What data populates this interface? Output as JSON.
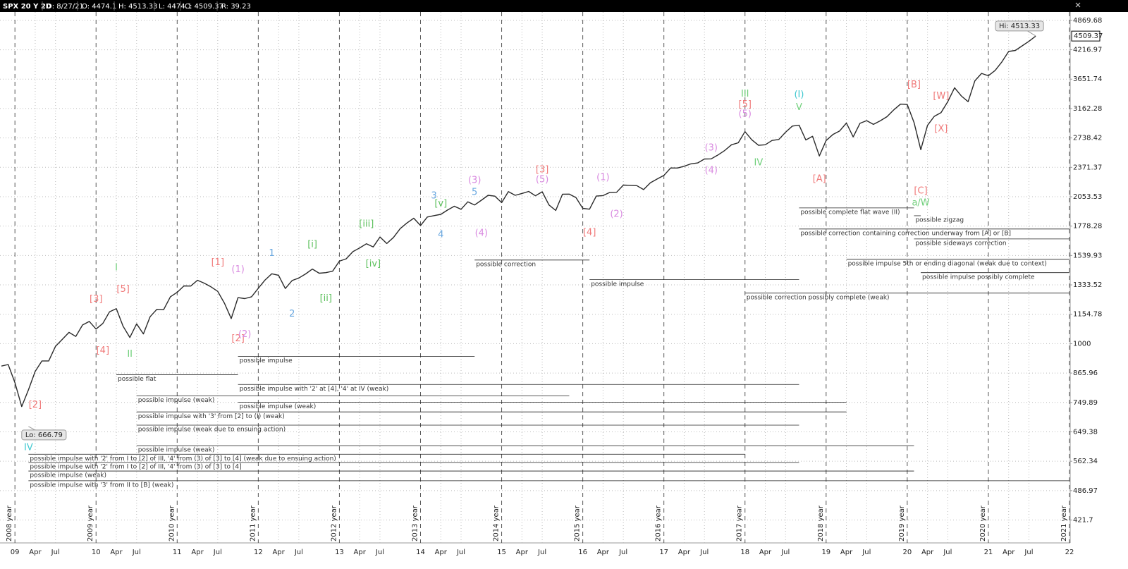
{
  "header": {
    "symbol": "SPX 20 Y 2D",
    "date": "D: 8/27/21",
    "open": "O: 4474.1",
    "high": "H: 4513.33",
    "low": "L: 4474.1",
    "close": "C: 4509.37",
    "range": "R: 39.23"
  },
  "chart_data": {
    "type": "line",
    "log_scale": true,
    "grid": true,
    "color": "#2a2a2a",
    "x": [
      "2008-11",
      "2008-12",
      "2009-01",
      "2009-02",
      "2009-03",
      "2009-04",
      "2009-05",
      "2009-06",
      "2009-07",
      "2009-08",
      "2009-09",
      "2009-10",
      "2009-11",
      "2009-12",
      "2010-01",
      "2010-02",
      "2010-03",
      "2010-04",
      "2010-05",
      "2010-06",
      "2010-07",
      "2010-08",
      "2010-09",
      "2010-10",
      "2010-11",
      "2010-12",
      "2011-01",
      "2011-02",
      "2011-03",
      "2011-04",
      "2011-05",
      "2011-06",
      "2011-07",
      "2011-08",
      "2011-09",
      "2011-10",
      "2011-11",
      "2011-12",
      "2012-01",
      "2012-02",
      "2012-03",
      "2012-04",
      "2012-05",
      "2012-06",
      "2012-07",
      "2012-08",
      "2012-09",
      "2012-10",
      "2012-11",
      "2012-12",
      "2013-01",
      "2013-02",
      "2013-03",
      "2013-04",
      "2013-05",
      "2013-06",
      "2013-07",
      "2013-08",
      "2013-09",
      "2013-10",
      "2013-11",
      "2013-12",
      "2014-01",
      "2014-02",
      "2014-03",
      "2014-04",
      "2014-05",
      "2014-06",
      "2014-07",
      "2014-08",
      "2014-09",
      "2014-10",
      "2014-11",
      "2014-12",
      "2015-01",
      "2015-02",
      "2015-03",
      "2015-04",
      "2015-05",
      "2015-06",
      "2015-07",
      "2015-08",
      "2015-09",
      "2015-10",
      "2015-11",
      "2015-12",
      "2016-01",
      "2016-02",
      "2016-03",
      "2016-04",
      "2016-05",
      "2016-06",
      "2016-07",
      "2016-08",
      "2016-09",
      "2016-10",
      "2016-11",
      "2016-12",
      "2017-01",
      "2017-02",
      "2017-03",
      "2017-04",
      "2017-05",
      "2017-06",
      "2017-07",
      "2017-08",
      "2017-09",
      "2017-10",
      "2017-11",
      "2017-12",
      "2018-01",
      "2018-02",
      "2018-03",
      "2018-04",
      "2018-05",
      "2018-06",
      "2018-07",
      "2018-08",
      "2018-09",
      "2018-10",
      "2018-11",
      "2018-12",
      "2019-01",
      "2019-02",
      "2019-03",
      "2019-04",
      "2019-05",
      "2019-06",
      "2019-07",
      "2019-08",
      "2019-09",
      "2019-10",
      "2019-11",
      "2019-12",
      "2020-01",
      "2020-02",
      "2020-03",
      "2020-04",
      "2020-05",
      "2020-06",
      "2020-07",
      "2020-08",
      "2020-09",
      "2020-10",
      "2020-11",
      "2020-12",
      "2021-01",
      "2021-02",
      "2021-03",
      "2021-04",
      "2021-05",
      "2021-06",
      "2021-07",
      "2021-08"
    ],
    "values": [
      896,
      903,
      826,
      735,
      798,
      873,
      919,
      919,
      987,
      1021,
      1057,
      1036,
      1096,
      1115,
      1074,
      1104,
      1169,
      1187,
      1089,
      1031,
      1102,
      1049,
      1141,
      1183,
      1181,
      1258,
      1286,
      1327,
      1326,
      1364,
      1345,
      1321,
      1292,
      1219,
      1131,
      1253,
      1247,
      1258,
      1312,
      1366,
      1408,
      1398,
      1310,
      1362,
      1379,
      1407,
      1441,
      1412,
      1416,
      1426,
      1498,
      1515,
      1569,
      1598,
      1631,
      1606,
      1686,
      1633,
      1682,
      1757,
      1806,
      1848,
      1783,
      1859,
      1872,
      1884,
      1924,
      1960,
      1931,
      2003,
      1972,
      2018,
      2068,
      2059,
      1995,
      2105,
      2068,
      2086,
      2107,
      2063,
      2104,
      1972,
      1920,
      2079,
      2080,
      2044,
      1940,
      1932,
      2060,
      2065,
      2097,
      2099,
      2174,
      2171,
      2168,
      2126,
      2199,
      2239,
      2279,
      2364,
      2363,
      2384,
      2412,
      2423,
      2470,
      2472,
      2519,
      2575,
      2648,
      2674,
      2824,
      2714,
      2641,
      2648,
      2705,
      2718,
      2816,
      2902,
      2914,
      2711,
      2760,
      2507,
      2704,
      2784,
      2834,
      2946,
      2752,
      2942,
      2980,
      2926,
      2977,
      3038,
      3141,
      3231,
      3226,
      2954,
      2585,
      2912,
      3044,
      3100,
      3271,
      3500,
      3363,
      3270,
      3622,
      3756,
      3714,
      3811,
      3973,
      4181,
      4204,
      4298,
      4395,
      4509
    ],
    "xlim": [
      "2008-11",
      "2022-01"
    ],
    "ylim": [
      377,
      5056
    ],
    "yticks": [
      4869.68,
      4216.97,
      3651.74,
      3162.28,
      2738.42,
      2371.37,
      2053.53,
      1778.28,
      1539.93,
      1333.52,
      1154.78,
      1000,
      865.96,
      749.89,
      649.38,
      562.34,
      486.97,
      421.7
    ],
    "xticks": [
      {
        "value": "2009-01",
        "label": "09"
      },
      {
        "value": "2009-04",
        "label": "Apr"
      },
      {
        "value": "2009-07",
        "label": "Jul"
      },
      {
        "value": "2010-01",
        "label": "10"
      },
      {
        "value": "2010-04",
        "label": "Apr"
      },
      {
        "value": "2010-07",
        "label": "Jul"
      },
      {
        "value": "2011-01",
        "label": "11"
      },
      {
        "value": "2011-04",
        "label": "Apr"
      },
      {
        "value": "2011-07",
        "label": "Jul"
      },
      {
        "value": "2012-01",
        "label": "12"
      },
      {
        "value": "2012-04",
        "label": "Apr"
      },
      {
        "value": "2012-07",
        "label": "Jul"
      },
      {
        "value": "2013-01",
        "label": "13"
      },
      {
        "value": "2013-04",
        "label": "Apr"
      },
      {
        "value": "2013-07",
        "label": "Jul"
      },
      {
        "value": "2014-01",
        "label": "14"
      },
      {
        "value": "2014-04",
        "label": "Apr"
      },
      {
        "value": "2014-07",
        "label": "Jul"
      },
      {
        "value": "2015-01",
        "label": "15"
      },
      {
        "value": "2015-04",
        "label": "Apr"
      },
      {
        "value": "2015-07",
        "label": "Jul"
      },
      {
        "value": "2016-01",
        "label": "16"
      },
      {
        "value": "2016-04",
        "label": "Apr"
      },
      {
        "value": "2016-07",
        "label": "Jul"
      },
      {
        "value": "2017-01",
        "label": "17"
      },
      {
        "value": "2017-04",
        "label": "Apr"
      },
      {
        "value": "2017-07",
        "label": "Jul"
      },
      {
        "value": "2018-01",
        "label": "18"
      },
      {
        "value": "2018-04",
        "label": "Apr"
      },
      {
        "value": "2018-07",
        "label": "Jul"
      },
      {
        "value": "2019-01",
        "label": "19"
      },
      {
        "value": "2019-04",
        "label": "Apr"
      },
      {
        "value": "2019-07",
        "label": "Jul"
      },
      {
        "value": "2020-01",
        "label": "20"
      },
      {
        "value": "2020-04",
        "label": "Apr"
      },
      {
        "value": "2020-07",
        "label": "Jul"
      },
      {
        "value": "2021-01",
        "label": "21"
      },
      {
        "value": "2021-04",
        "label": "Apr"
      },
      {
        "value": "2021-07",
        "label": "Jul"
      },
      {
        "value": "2022-01",
        "label": "22"
      }
    ],
    "year_labels": [
      {
        "value": "2009-01",
        "label": "2008 year"
      },
      {
        "value": "2010-01",
        "label": "2009 year"
      },
      {
        "value": "2011-01",
        "label": "2010 year"
      },
      {
        "value": "2012-01",
        "label": "2011 year"
      },
      {
        "value": "2013-01",
        "label": "2012 year"
      },
      {
        "value": "2014-01",
        "label": "2013 year"
      },
      {
        "value": "2015-01",
        "label": "2014 year"
      },
      {
        "value": "2016-01",
        "label": "2015 year"
      },
      {
        "value": "2017-01",
        "label": "2016 year"
      },
      {
        "value": "2018-01",
        "label": "2017 year"
      },
      {
        "value": "2019-01",
        "label": "2018 year"
      },
      {
        "value": "2020-01",
        "label": "2019 year"
      },
      {
        "value": "2021-01",
        "label": "2020 year"
      },
      {
        "value": "2022-01",
        "label": "2021 year"
      }
    ],
    "last_price": 4509.37,
    "extremes": [
      {
        "text": "Lo: 666.79",
        "x": "2009-03",
        "y": 666.79,
        "side": "below"
      },
      {
        "text": "Hi: 4513.33",
        "x": "2021-08",
        "y": 4513.33,
        "side": "above"
      }
    ],
    "wave_labels": [
      {
        "text": "[1]",
        "color": "#f07878",
        "x": "2011-07",
        "y": 1486
      },
      {
        "text": "[2]",
        "color": "#f07878",
        "x": "2011-10",
        "y": 1024
      },
      {
        "text": "(1)",
        "color": "#d98ae0",
        "x": "2011-10",
        "y": 1436
      },
      {
        "text": "(2)",
        "color": "#d98ae0",
        "x": "2011-11",
        "y": 1046
      },
      {
        "text": "[3]",
        "color": "#f07878",
        "x": "2010-01",
        "y": 1242
      },
      {
        "text": "[4]",
        "color": "#f07878",
        "x": "2010-02",
        "y": 966
      },
      {
        "text": "[5]",
        "color": "#f07878",
        "x": "2010-05",
        "y": 1304
      },
      {
        "text": "I",
        "color": "#6fcf7a",
        "x": "2010-04",
        "y": 1450
      },
      {
        "text": "II",
        "color": "#6fcf7a",
        "x": "2010-06",
        "y": 950
      },
      {
        "text": "[2]",
        "color": "#f07878",
        "x": "2009-04",
        "y": 741
      },
      {
        "text": "IV",
        "color": "#3fc8d0",
        "x": "2009-03",
        "y": 601
      },
      {
        "text": "1",
        "color": "#6aa8e0",
        "x": "2012-03",
        "y": 1554
      },
      {
        "text": "2",
        "color": "#6aa8e0",
        "x": "2012-06",
        "y": 1155
      },
      {
        "text": "3",
        "color": "#6aa8e0",
        "x": "2014-03",
        "y": 2061
      },
      {
        "text": "4",
        "color": "#6aa8e0",
        "x": "2014-04",
        "y": 1705
      },
      {
        "text": "5",
        "color": "#6aa8e0",
        "x": "2014-09",
        "y": 2097
      },
      {
        "text": "[i]",
        "color": "#5cc05c",
        "x": "2012-09",
        "y": 1625
      },
      {
        "text": "[ii]",
        "color": "#5cc05c",
        "x": "2012-11",
        "y": 1247
      },
      {
        "text": "[iii]",
        "color": "#5cc05c",
        "x": "2013-05",
        "y": 1796
      },
      {
        "text": "[iv]",
        "color": "#5cc05c",
        "x": "2013-06",
        "y": 1476
      },
      {
        "text": "[v]",
        "color": "#5cc05c",
        "x": "2014-04",
        "y": 1984
      },
      {
        "text": "(3)",
        "color": "#d98ae0",
        "x": "2014-09",
        "y": 2223
      },
      {
        "text": "(4)",
        "color": "#d98ae0",
        "x": "2014-10",
        "y": 1717
      },
      {
        "text": "(5)",
        "color": "#d98ae0",
        "x": "2015-07",
        "y": 2231
      },
      {
        "text": "[3]",
        "color": "#f07878",
        "x": "2015-07",
        "y": 2341
      },
      {
        "text": "[4]",
        "color": "#f07878",
        "x": "2016-02",
        "y": 1723
      },
      {
        "text": "(1)",
        "color": "#d98ae0",
        "x": "2016-04",
        "y": 2254
      },
      {
        "text": "(2)",
        "color": "#d98ae0",
        "x": "2016-06",
        "y": 1884
      },
      {
        "text": "(3)",
        "color": "#d98ae0",
        "x": "2017-08",
        "y": 2604
      },
      {
        "text": "(4)",
        "color": "#d98ae0",
        "x": "2017-08",
        "y": 2333
      },
      {
        "text": "III",
        "color": "#6fcf7a",
        "x": "2018-01",
        "y": 3395
      },
      {
        "text": "[5]",
        "color": "#f07878",
        "x": "2018-01",
        "y": 3224
      },
      {
        "text": "(5)",
        "color": "#d98ae0",
        "x": "2018-01",
        "y": 3073
      },
      {
        "text": "IV",
        "color": "#6fcf7a",
        "x": "2018-03",
        "y": 2423
      },
      {
        "text": "(I)",
        "color": "#3fc8d0",
        "x": "2018-09",
        "y": 3384
      },
      {
        "text": "V",
        "color": "#6fcf7a",
        "x": "2018-09",
        "y": 3180
      },
      {
        "text": "[A]",
        "color": "#f07878",
        "x": "2018-12",
        "y": 2238
      },
      {
        "text": "[B]",
        "color": "#f07878",
        "x": "2020-02",
        "y": 3550
      },
      {
        "text": "[W]",
        "color": "#f07878",
        "x": "2020-06",
        "y": 3360
      },
      {
        "text": "[X]",
        "color": "#f07878",
        "x": "2020-06",
        "y": 2858
      },
      {
        "text": "[C]",
        "color": "#f07878",
        "x": "2020-03",
        "y": 2111
      },
      {
        "text": "a/W",
        "color": "#6fcf7a",
        "x": "2020-03",
        "y": 1991
      }
    ],
    "scenario_lines": [
      {
        "text": "possible flat",
        "x": [
          "2010-04",
          "2011-10"
        ],
        "y": 859
      },
      {
        "text": "possible impulse",
        "x": [
          "2011-10",
          "2014-09"
        ],
        "y": 940
      },
      {
        "text": "possible impulse with '2' at [4], '4' at IV (weak)",
        "x": [
          "2011-10",
          "2018-09"
        ],
        "y": 819
      },
      {
        "text": "possible impulse (weak)",
        "x": [
          "2010-07",
          "2015-11"
        ],
        "y": 775
      },
      {
        "text": "possible impulse (weak)",
        "x": [
          "2011-10",
          "2019-04"
        ],
        "y": 751
      },
      {
        "text": "possible impulse with '3' from [2] to (I) (weak)",
        "x": [
          "2010-07",
          "2019-04"
        ],
        "y": 716
      },
      {
        "text": "possible impulse (weak due to ensuing action)",
        "x": [
          "2010-07",
          "2018-09"
        ],
        "y": 671
      },
      {
        "text": "possible impulse (weak)",
        "x": [
          "2010-07",
          "2020-02"
        ],
        "y": 607
      },
      {
        "text": "possible impulse with '2' from I to [2] of III, '4' from (3) of [3] to [4] (weak due to ensuing action)",
        "x": [
          "2009-03",
          "2018-01"
        ],
        "y": 582
      },
      {
        "text": "possible impulse with '2' from I to [2] of III, '4' from (3) of [3] to [4]",
        "x": [
          "2009-03",
          "2018-09"
        ],
        "y": 559
      },
      {
        "text": "possible impulse (weak)",
        "x": [
          "2009-03",
          "2020-02"
        ],
        "y": 536
      },
      {
        "text": "possible impulse with '3' from II to [B] (weak)",
        "x": [
          "2009-03",
          "2022-01"
        ],
        "y": 511
      },
      {
        "text": "possible correction",
        "x": [
          "2014-09",
          "2016-02"
        ],
        "y": 1506
      },
      {
        "text": "possible impulse",
        "x": [
          "2016-02",
          "2018-09"
        ],
        "y": 1368
      },
      {
        "text": "possible correction possibly complete (weak)",
        "x": [
          "2018-01",
          "2022-01"
        ],
        "y": 1281
      },
      {
        "text": "possible complete flat wave (II)",
        "x": [
          "2018-09",
          "2020-02"
        ],
        "y": 1944
      },
      {
        "text": "possible zigzag",
        "x": [
          "2020-02",
          "2020-03"
        ],
        "y": 1871
      },
      {
        "text": "possible correction containing correction underway from [A] or [B]",
        "x": [
          "2018-09",
          "2022-01"
        ],
        "y": 1753
      },
      {
        "text": "possible sideways correction",
        "x": [
          "2020-02",
          "2022-01"
        ],
        "y": 1670
      },
      {
        "text": "possible impulse 5th or ending diagonal (weak due to context)",
        "x": [
          "2019-04",
          "2022-01"
        ],
        "y": 1512
      },
      {
        "text": "possible impulse possibly complete",
        "x": [
          "2020-03",
          "2022-01"
        ],
        "y": 1416
      }
    ]
  }
}
